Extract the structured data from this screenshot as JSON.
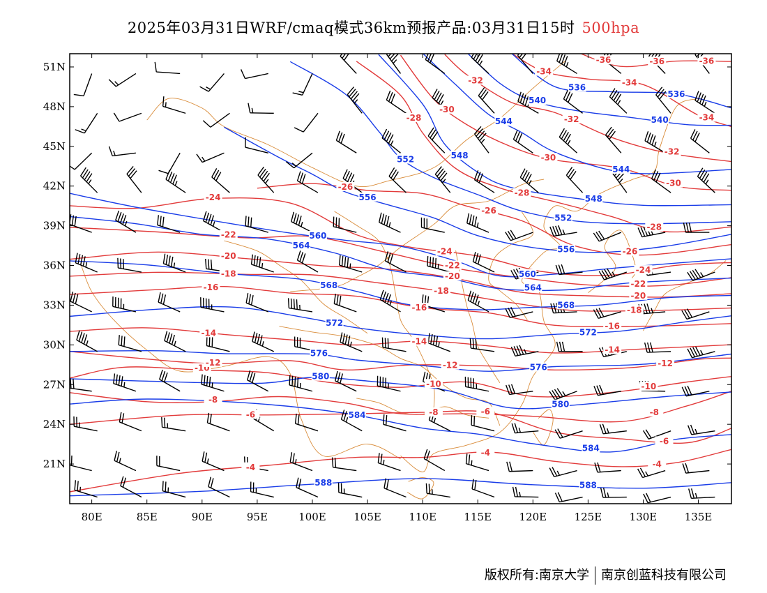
{
  "title": {
    "text": "2025年03月31日WRF/cmaq模式36km预报产品:03月31日15时",
    "level": "500hpa"
  },
  "footer": {
    "copyright": "版权所有:南京大学",
    "company": "南京创蓝科技有限公司"
  },
  "colors": {
    "height_contour": "#1a3de8",
    "temperature_contour": "#e23b3b",
    "boundaries": "#d98c3a",
    "wind_barbs": "#000000",
    "title_level": "#e23b3b"
  },
  "axes": {
    "lon_range": [
      78,
      138
    ],
    "lat_range": [
      18,
      52
    ],
    "x_ticks": [
      "80E",
      "85E",
      "90E",
      "95E",
      "100E",
      "105E",
      "110E",
      "115E",
      "120E",
      "125E",
      "130E",
      "135E"
    ],
    "x_tick_values": [
      80,
      85,
      90,
      95,
      100,
      105,
      110,
      115,
      120,
      125,
      130,
      135
    ],
    "y_ticks": [
      "51N",
      "48N",
      "45N",
      "42N",
      "39N",
      "36N",
      "33N",
      "30N",
      "27N",
      "24N",
      "21N"
    ],
    "y_tick_values": [
      51,
      48,
      45,
      42,
      39,
      36,
      33,
      30,
      27,
      24,
      21
    ]
  },
  "height_contours": [
    {
      "value": "588",
      "path": [
        [
          78,
          18.5
        ],
        [
          90,
          19
        ],
        [
          100,
          19.5
        ],
        [
          110,
          19.8
        ],
        [
          120,
          19.5
        ],
        [
          130,
          19.2
        ],
        [
          138,
          19.5
        ]
      ]
    },
    {
      "value": "584",
      "path": [
        [
          78,
          25.5
        ],
        [
          85,
          26
        ],
        [
          95,
          25.5
        ],
        [
          103,
          24.8
        ],
        [
          110,
          23.8
        ],
        [
          115,
          23.2
        ],
        [
          120,
          22.5
        ],
        [
          127,
          22
        ],
        [
          133,
          22.8
        ],
        [
          138,
          23.2
        ]
      ]
    },
    {
      "value": "580",
      "path": [
        [
          78,
          27.5
        ],
        [
          85,
          27.3
        ],
        [
          95,
          27
        ],
        [
          100,
          27.6
        ],
        [
          105,
          27.3
        ],
        [
          112,
          26.5
        ],
        [
          118,
          25.3
        ],
        [
          124,
          25.5
        ],
        [
          132,
          26
        ],
        [
          138,
          26.5
        ]
      ]
    },
    {
      "value": "576",
      "path": [
        [
          78,
          29.6
        ],
        [
          86,
          29.5
        ],
        [
          92,
          29.3
        ],
        [
          100,
          29.4
        ],
        [
          104,
          28.8
        ],
        [
          110,
          28.4
        ],
        [
          116,
          28.1
        ],
        [
          122,
          28.3
        ],
        [
          130,
          28.5
        ],
        [
          138,
          29.4
        ]
      ]
    },
    {
      "value": "572",
      "path": [
        [
          78,
          32.2
        ],
        [
          86,
          32.6
        ],
        [
          93,
          32.9
        ],
        [
          100,
          32
        ],
        [
          104,
          31.2
        ],
        [
          110,
          30.8
        ],
        [
          116,
          30.5
        ],
        [
          122,
          30.7
        ],
        [
          128,
          31.1
        ],
        [
          134,
          31.8
        ],
        [
          138,
          32.1
        ]
      ]
    },
    {
      "value": "568",
      "path": [
        [
          78,
          36.3
        ],
        [
          85,
          36
        ],
        [
          92,
          35.5
        ],
        [
          99,
          34.9
        ],
        [
          104,
          34
        ],
        [
          109,
          33.1
        ],
        [
          115,
          32.6
        ],
        [
          120,
          32.8
        ],
        [
          126,
          33.1
        ],
        [
          132,
          33.5
        ],
        [
          138,
          33.7
        ]
      ]
    },
    {
      "value": "564",
      "path": [
        [
          78,
          39.6
        ],
        [
          84,
          39.2
        ],
        [
          90,
          38.4
        ],
        [
          96,
          37.9
        ],
        [
          102,
          37
        ],
        [
          107,
          35.7
        ],
        [
          112,
          35
        ],
        [
          117,
          34.3
        ],
        [
          123,
          34.2
        ],
        [
          129,
          34.6
        ],
        [
          138,
          35.1
        ]
      ]
    },
    {
      "value": "560",
      "path": [
        [
          78,
          41.4
        ],
        [
          84,
          40.5
        ],
        [
          92,
          39.2
        ],
        [
          98,
          38.4
        ],
        [
          103,
          38
        ],
        [
          108,
          37.4
        ],
        [
          113,
          36.3
        ],
        [
          117,
          35.3
        ],
        [
          122,
          35.3
        ],
        [
          128,
          35.8
        ],
        [
          138,
          36.6
        ]
      ]
    },
    {
      "value": "556",
      "path": [
        [
          92,
          46.5
        ],
        [
          97,
          44.2
        ],
        [
          100,
          42.8
        ],
        [
          103,
          41.6
        ],
        [
          107,
          40.6
        ],
        [
          111,
          39.5
        ],
        [
          115,
          38.3
        ],
        [
          120,
          37.4
        ],
        [
          126,
          36.9
        ],
        [
          132,
          37.5
        ],
        [
          138,
          38.4
        ]
      ]
    },
    {
      "value": "552",
      "path": [
        [
          98,
          51.5
        ],
        [
          103,
          48.9
        ],
        [
          106,
          46.1
        ],
        [
          108,
          44.2
        ],
        [
          111,
          42.6
        ],
        [
          115,
          41.3
        ],
        [
          119,
          40.2
        ],
        [
          124,
          39.3
        ],
        [
          130,
          39.1
        ],
        [
          138,
          39.4
        ]
      ]
    },
    {
      "value": "548",
      "path": [
        [
          106,
          52
        ],
        [
          110,
          48.1
        ],
        [
          112,
          45.2
        ],
        [
          115,
          43.1
        ],
        [
          118,
          41.8
        ],
        [
          124,
          41.1
        ],
        [
          130,
          40.6
        ],
        [
          138,
          40.5
        ]
      ]
    },
    {
      "value": "544",
      "path": [
        [
          110,
          52
        ],
        [
          113,
          49.6
        ],
        [
          116,
          47.5
        ],
        [
          119,
          46
        ],
        [
          122,
          44.5
        ],
        [
          127,
          43.3
        ],
        [
          131,
          42.9
        ],
        [
          138,
          43.2
        ]
      ]
    },
    {
      "value": "540",
      "path": [
        [
          114,
          52
        ],
        [
          117,
          49.8
        ],
        [
          120,
          48.5
        ],
        [
          124,
          47.6
        ],
        [
          129,
          47.2
        ],
        [
          134,
          46.7
        ],
        [
          138,
          46.5
        ]
      ]
    },
    {
      "value": "536",
      "path": [
        [
          118,
          52
        ],
        [
          122,
          49.6
        ],
        [
          127,
          49.1
        ],
        [
          133,
          48.9
        ],
        [
          138,
          48
        ]
      ]
    }
  ],
  "temperature_contours": [
    {
      "value": "-4",
      "path": [
        [
          78,
          19
        ],
        [
          88,
          20.3
        ],
        [
          96,
          20.8
        ],
        [
          104,
          21.6
        ],
        [
          110,
          21.5
        ],
        [
          116,
          21.8
        ],
        [
          122,
          21.3
        ],
        [
          128,
          20.8
        ],
        [
          133,
          21
        ],
        [
          138,
          22.2
        ]
      ]
    },
    {
      "value": "-6",
      "path": [
        [
          78,
          24.1
        ],
        [
          88,
          24.6
        ],
        [
          96,
          24.7
        ],
        [
          104,
          24.9
        ],
        [
          110,
          24.8
        ],
        [
          116,
          24.9
        ],
        [
          122,
          23.5
        ],
        [
          128,
          22.8
        ],
        [
          134,
          22.6
        ],
        [
          138,
          23.8
        ]
      ]
    },
    {
      "value": "-8",
      "path": [
        [
          78,
          26.4
        ],
        [
          85,
          25.6
        ],
        [
          91,
          25.8
        ],
        [
          97,
          26.1
        ],
        [
          103,
          25.5
        ],
        [
          108,
          24.9
        ],
        [
          114,
          24.8
        ],
        [
          120,
          24.5
        ],
        [
          128,
          24.3
        ],
        [
          134,
          25.4
        ],
        [
          138,
          26.4
        ]
      ]
    },
    {
      "value": "-10",
      "path": [
        [
          78,
          27.4
        ],
        [
          83,
          28.3
        ],
        [
          90,
          28.2
        ],
        [
          96,
          27.8
        ],
        [
          102,
          27.1
        ],
        [
          108,
          26.9
        ],
        [
          114,
          27.1
        ],
        [
          120,
          26.1
        ],
        [
          127,
          26.5
        ],
        [
          134,
          27.1
        ],
        [
          138,
          27.6
        ]
      ]
    },
    {
      "value": "-12",
      "path": [
        [
          78,
          29.4
        ],
        [
          84,
          29.1
        ],
        [
          91,
          28.6
        ],
        [
          98,
          28.7
        ],
        [
          103,
          28.2
        ],
        [
          109,
          28.5
        ],
        [
          116,
          28.3
        ],
        [
          122,
          28.2
        ],
        [
          129,
          28.3
        ],
        [
          135,
          28.8
        ],
        [
          138,
          29.1
        ]
      ]
    },
    {
      "value": "-14",
      "path": [
        [
          78,
          31
        ],
        [
          85,
          31.4
        ],
        [
          92,
          30.7
        ],
        [
          99,
          30.3
        ],
        [
          104,
          30.1
        ],
        [
          110,
          30.2
        ],
        [
          116,
          29.9
        ],
        [
          122,
          29.5
        ],
        [
          130,
          29.6
        ],
        [
          138,
          30
        ]
      ]
    },
    {
      "value": "-16",
      "path": [
        [
          78,
          33.9
        ],
        [
          86,
          34.2
        ],
        [
          92,
          34.3
        ],
        [
          98,
          34
        ],
        [
          104,
          33.7
        ],
        [
          110,
          32.7
        ],
        [
          116,
          32.5
        ],
        [
          122,
          31.5
        ],
        [
          130,
          31.3
        ],
        [
          138,
          31.7
        ]
      ]
    },
    {
      "value": "-18",
      "path": [
        [
          78,
          35.3
        ],
        [
          86,
          35.4
        ],
        [
          94,
          35.3
        ],
        [
          100,
          35.4
        ],
        [
          106,
          34.6
        ],
        [
          112,
          34
        ],
        [
          118,
          33.3
        ],
        [
          124,
          32.5
        ],
        [
          132,
          32.6
        ],
        [
          138,
          32.9
        ]
      ]
    },
    {
      "value": "-20",
      "path": [
        [
          78,
          36.5
        ],
        [
          86,
          36.9
        ],
        [
          94,
          36.6
        ],
        [
          101,
          36
        ],
        [
          107,
          35.6
        ],
        [
          113,
          35.1
        ],
        [
          119,
          34
        ],
        [
          125,
          33.6
        ],
        [
          132,
          33.7
        ],
        [
          138,
          33.9
        ]
      ]
    },
    {
      "value": "-22",
      "path": [
        [
          78,
          38.8
        ],
        [
          86,
          38.5
        ],
        [
          94,
          38.2
        ],
        [
          100,
          38.1
        ],
        [
          107,
          36.9
        ],
        [
          113,
          35.9
        ],
        [
          119,
          35
        ],
        [
          125,
          34.5
        ],
        [
          132,
          34.6
        ],
        [
          138,
          35
        ]
      ]
    },
    {
      "value": "-24",
      "path": [
        [
          78,
          40.4
        ],
        [
          84,
          40.4
        ],
        [
          91,
          41.1
        ],
        [
          98,
          40.6
        ],
        [
          104,
          38.4
        ],
        [
          109,
          37.4
        ],
        [
          115,
          36.6
        ],
        [
          121,
          35.6
        ],
        [
          127,
          35.3
        ],
        [
          133,
          35.9
        ],
        [
          138,
          36.3
        ]
      ]
    },
    {
      "value": "-26",
      "path": [
        [
          95,
          41.8
        ],
        [
          100,
          42.3
        ],
        [
          105,
          41.6
        ],
        [
          110,
          41.4
        ],
        [
          114,
          40.6
        ],
        [
          119,
          39.3
        ],
        [
          124,
          37.4
        ],
        [
          130,
          36.9
        ],
        [
          138,
          37.5
        ]
      ]
    },
    {
      "value": "-28",
      "path": [
        [
          104,
          51.5
        ],
        [
          108,
          48.9
        ],
        [
          110,
          45.9
        ],
        [
          113,
          43.4
        ],
        [
          117,
          41.9
        ],
        [
          122,
          40.7
        ],
        [
          127,
          39.8
        ],
        [
          132,
          38.6
        ],
        [
          138,
          38.8
        ]
      ]
    },
    {
      "value": "-30",
      "path": [
        [
          108,
          52
        ],
        [
          111,
          48.5
        ],
        [
          114,
          46.6
        ],
        [
          118,
          45.1
        ],
        [
          122,
          43.9
        ],
        [
          128,
          43.3
        ],
        [
          133,
          42.1
        ],
        [
          138,
          41.6
        ]
      ]
    },
    {
      "value": "-32",
      "path": [
        [
          112,
          52
        ],
        [
          114,
          50.3
        ],
        [
          118,
          48.4
        ],
        [
          122,
          47.6
        ],
        [
          127,
          45.6
        ],
        [
          132,
          44.6
        ],
        [
          138,
          43.9
        ]
      ]
    },
    {
      "value": "-34",
      "path": [
        [
          118,
          52
        ],
        [
          121,
          50.6
        ],
        [
          125,
          50.2
        ],
        [
          130,
          49.6
        ],
        [
          135,
          47.3
        ],
        [
          138,
          46.6
        ]
      ]
    },
    {
      "value": "-36",
      "path": [
        [
          124,
          52
        ],
        [
          128,
          51.1
        ],
        [
          133,
          51.5
        ],
        [
          138,
          51.3
        ]
      ]
    }
  ],
  "wind_barb_rows_lat": [
    50.5,
    47.5,
    44.5,
    41.5,
    38.5,
    35.5,
    32.5,
    29.5,
    26.5,
    23.5,
    20.5,
    18.5
  ],
  "wind_barb_cols_lon": [
    80,
    84,
    88,
    92,
    96,
    100,
    104,
    108,
    112,
    116,
    120,
    124,
    128,
    132,
    136
  ],
  "map_labels": {
    "city_chengdu_like": "⊙",
    "compass_note": ""
  }
}
